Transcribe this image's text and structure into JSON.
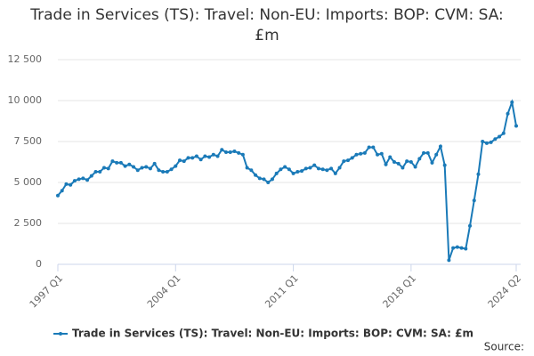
{
  "chart_data": {
    "type": "line",
    "title": "Trade in Services (TS): Travel: Non-EU: Imports: BOP: CVM: SA: £m",
    "source": "Source:",
    "categories": [
      "1997 Q1",
      null,
      null,
      null,
      null,
      null,
      null,
      null,
      null,
      null,
      null,
      null,
      null,
      null,
      null,
      null,
      null,
      null,
      null,
      null,
      null,
      null,
      null,
      null,
      null,
      null,
      null,
      null,
      "2004 Q1",
      null,
      null,
      null,
      null,
      null,
      null,
      null,
      null,
      null,
      null,
      null,
      null,
      null,
      null,
      null,
      null,
      null,
      null,
      null,
      null,
      null,
      null,
      null,
      null,
      null,
      null,
      null,
      "2011 Q1",
      null,
      null,
      null,
      null,
      null,
      null,
      null,
      null,
      null,
      null,
      null,
      null,
      null,
      null,
      null,
      null,
      null,
      null,
      null,
      null,
      null,
      null,
      null,
      null,
      null,
      null,
      null,
      "2018 Q1",
      null,
      null,
      null,
      null,
      null,
      null,
      null,
      null,
      null,
      null,
      null,
      null,
      null,
      null,
      null,
      null,
      null,
      null,
      null,
      null,
      null,
      null,
      null,
      null,
      "2024 Q2"
    ],
    "series": [
      {
        "name": "Trade in Services (TS): Travel: Non-EU: Imports: BOP: CVM: SA: £m",
        "color": "#1a7ab8",
        "values": [
          4200,
          4500,
          4900,
          4850,
          5100,
          5200,
          5250,
          5150,
          5400,
          5650,
          5650,
          5900,
          5850,
          6300,
          6200,
          6200,
          6000,
          6100,
          5950,
          5750,
          5900,
          5950,
          5850,
          6150,
          5750,
          5650,
          5650,
          5800,
          6000,
          6350,
          6300,
          6500,
          6500,
          6600,
          6400,
          6600,
          6550,
          6700,
          6600,
          7000,
          6850,
          6850,
          6900,
          6800,
          6700,
          5900,
          5750,
          5450,
          5250,
          5200,
          5000,
          5200,
          5550,
          5800,
          5950,
          5800,
          5550,
          5650,
          5700,
          5850,
          5900,
          6050,
          5850,
          5800,
          5750,
          5850,
          5550,
          5900,
          6300,
          6350,
          6500,
          6700,
          6750,
          6800,
          7150,
          7150,
          6700,
          6750,
          6100,
          6550,
          6250,
          6150,
          5900,
          6300,
          6250,
          5950,
          6450,
          6800,
          6800,
          6200,
          6700,
          7200,
          6050,
          250,
          1000,
          1050,
          1000,
          950,
          2350,
          3900,
          5500,
          7500,
          7400,
          7450,
          7650,
          7800,
          8000,
          9200,
          9900,
          8450
        ]
      }
    ],
    "ylim": [
      0,
      12500
    ],
    "yticks": [
      0,
      {
        "value": 2500,
        "label": "2 500"
      },
      {
        "value": 5000,
        "label": "5 000"
      },
      {
        "value": 7500,
        "label": "7 500"
      },
      {
        "value": 10000,
        "label": "10 000"
      },
      {
        "value": 12500,
        "label": "12 500"
      }
    ],
    "grid": true
  }
}
